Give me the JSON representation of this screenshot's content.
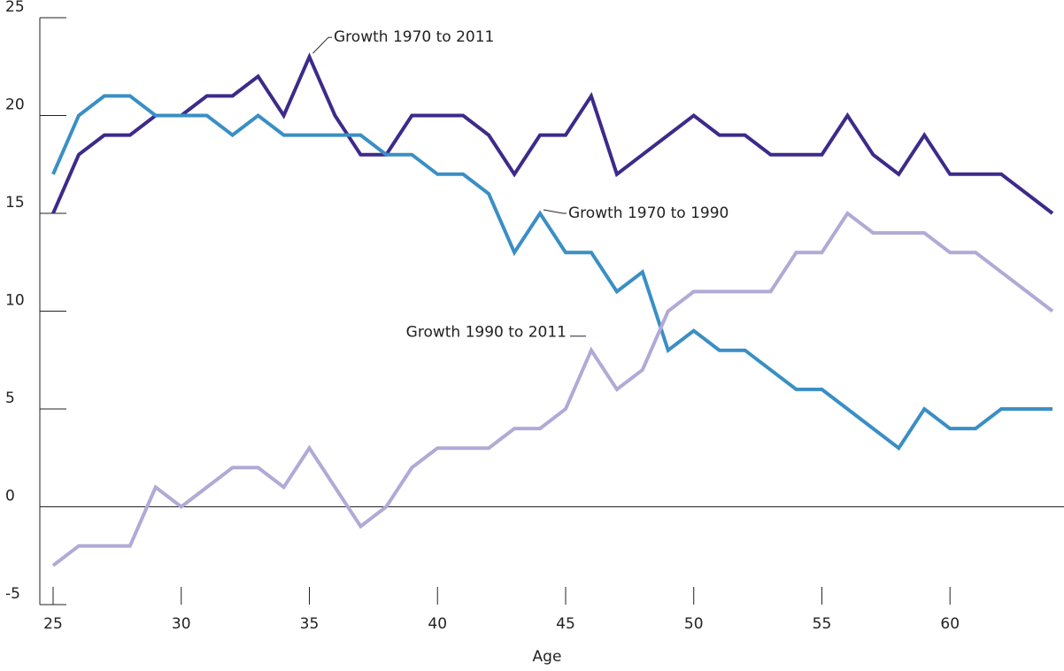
{
  "chart_data": {
    "type": "line",
    "x_label": "Age",
    "x": [
      25,
      26,
      27,
      28,
      29,
      30,
      31,
      32,
      33,
      34,
      35,
      36,
      37,
      38,
      39,
      40,
      41,
      42,
      43,
      44,
      45,
      46,
      47,
      48,
      49,
      50,
      51,
      52,
      53,
      54,
      55,
      56,
      57,
      58,
      59,
      60,
      61,
      62,
      63,
      64
    ],
    "series": [
      {
        "name": "Growth 1970 to 2011",
        "color": "#3d2a8a",
        "values": [
          15,
          18,
          19,
          19,
          20,
          20,
          21,
          21,
          22,
          20,
          23,
          20,
          18,
          18,
          20,
          20,
          20,
          19,
          17,
          19,
          19,
          21,
          17,
          18,
          19,
          20,
          19,
          19,
          18,
          18,
          18,
          20,
          18,
          17,
          19,
          17,
          17,
          17,
          16,
          15
        ]
      },
      {
        "name": "Growth 1970 to 1990",
        "color": "#3a8fc4",
        "values": [
          17,
          20,
          21,
          21,
          20,
          20,
          20,
          19,
          20,
          19,
          19,
          19,
          19,
          18,
          18,
          17,
          17,
          16,
          13,
          15,
          13,
          13,
          11,
          12,
          8,
          9,
          8,
          8,
          7,
          6,
          6,
          5,
          4,
          3,
          5,
          4,
          4,
          5,
          5,
          5
        ]
      },
      {
        "name": "Growth 1990 to 2011",
        "color": "#b1a9d6",
        "values": [
          -3,
          -2,
          -2,
          -2,
          1,
          0,
          1,
          2,
          2,
          1,
          3,
          1,
          -1,
          0,
          2,
          3,
          3,
          3,
          4,
          4,
          5,
          8,
          6,
          7,
          10,
          11,
          11,
          11,
          11,
          13,
          13,
          15,
          14,
          14,
          14,
          13,
          13,
          12,
          11,
          10
        ]
      }
    ],
    "xlim": [
      25,
      64
    ],
    "xticks": [
      25,
      30,
      35,
      40,
      45,
      50,
      55,
      60
    ],
    "ylim": [
      -5,
      25
    ],
    "yticks": [
      -5,
      0,
      5,
      10,
      15,
      20,
      25
    ]
  }
}
